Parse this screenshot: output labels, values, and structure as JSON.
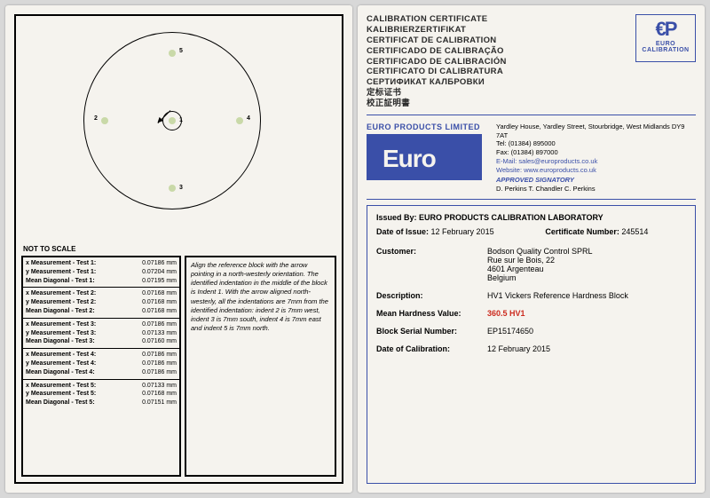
{
  "left": {
    "notScale": "NOT TO SCALE",
    "points": [
      {
        "id": "1",
        "circled": true
      },
      {
        "id": "2"
      },
      {
        "id": "3"
      },
      {
        "id": "4"
      },
      {
        "id": "5"
      }
    ],
    "measurements": [
      {
        "test": "1",
        "x": "0.07186 mm",
        "y": "0.07204 mm",
        "mean": "0.07195 mm"
      },
      {
        "test": "2",
        "x": "0.07168 mm",
        "y": "0.07168 mm",
        "mean": "0.07168 mm"
      },
      {
        "test": "3",
        "x": "0.07186 mm",
        "y": "0.07133 mm",
        "mean": "0.07160 mm"
      },
      {
        "test": "4",
        "x": "0.07186 mm",
        "y": "0.07186 mm",
        "mean": "0.07186 mm"
      },
      {
        "test": "5",
        "x": "0.07133 mm",
        "y": "0.07168 mm",
        "mean": "0.07151 mm"
      }
    ],
    "labels": {
      "xMeas": "x Measurement - Test",
      "yMeas": "y Measurement - Test",
      "meanDiag": "Mean Diagonal - Test"
    },
    "instructions": "Align the reference block with the arrow pointing in a north-westerly orientation. The identified indentation in the middle of the block is Indent 1. With the arrow aligned north-westerly, all the indentations are 7mm from the identified indentation: indent 2 is 7mm west, indent 3 is 7mm south, indent 4 is 7mm east and indent 5 is 7mm north."
  },
  "right": {
    "titles": [
      "CALIBRATION CERTIFICATE",
      "KALIBRIERZERTIFIKAT",
      "CERTIFICAT DE CALIBRATION",
      "CERTIFICADO DE CALIBRAÇÃO",
      "CERTIFICADO DE CALIBRACIÓN",
      "CERTIFICATO DI CALIBRATURA",
      "СЕРТИФИКАТ КАЛБРОВКИ",
      "定标证书",
      "校正証明書"
    ],
    "logoTop": "€P",
    "logoSub": "EURO CALIBRATION",
    "companyTitle": "EURO PRODUCTS LIMITED",
    "logoWord": "Euro",
    "address": "Yardley House, Yardley Street, Stourbridge, West Midlands DY9 7AT",
    "tel": "Tel:   (01384) 895000",
    "fax": "Fax:  (01384) 897000",
    "email": "E-Mail: sales@europroducts.co.uk",
    "web": "Website: www.europroducts.co.uk",
    "sigTitle": "APPROVED SIGNATORY",
    "sigNames": "D. Perkins      T. Chandler      C. Perkins",
    "issuedBy": "Issued By: EURO PRODUCTS CALIBRATION LABORATORY",
    "dateOfIssueK": "Date of Issue:",
    "dateOfIssueV": "12 February 2015",
    "certNoK": "Certificate Number:",
    "certNoV": "245514",
    "customerK": "Customer:",
    "customerV1": "Bodson Quality Control SPRL",
    "customerV2": "Rue sur le Bois, 22",
    "customerV3": "4601 Argenteau",
    "customerV4": "Belgium",
    "descK": "Description:",
    "descV": "HV1  Vickers Reference Hardness Block",
    "meanK": "Mean Hardness Value:",
    "meanV": "360.5 HV1",
    "serialK": "Block Serial Number:",
    "serialV": "EP15174650",
    "dateCalK": "Date of Calibration:",
    "dateCalV": "12 February 2015"
  }
}
